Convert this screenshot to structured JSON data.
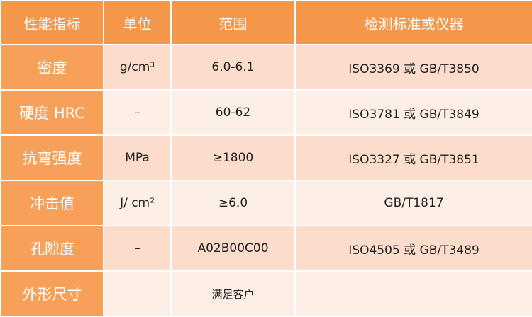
{
  "table": {
    "header": [
      "性能指标",
      "单位",
      "范围",
      "检测标准或仪器"
    ],
    "rows": [
      [
        "密度",
        "g/cm³",
        "6.0-6.1",
        "ISO3369 或 GB/T3850"
      ],
      [
        "硬度 HRC",
        "–",
        "60-62",
        "ISO3781 或 GB/T3849"
      ],
      [
        "抗弯强度",
        "MPa",
        "≥1800",
        "ISO3327 或 GB/T3851"
      ],
      [
        "冲击值",
        "J/ cm²",
        "≥6.0",
        "GB/T1817"
      ],
      [
        "孔隙度",
        "–",
        "A02B00C00",
        "ISO4505 或 GB/T3489"
      ],
      [
        "外形尺寸",
        null,
        "满足客户",
        null
      ]
    ]
  }
}
